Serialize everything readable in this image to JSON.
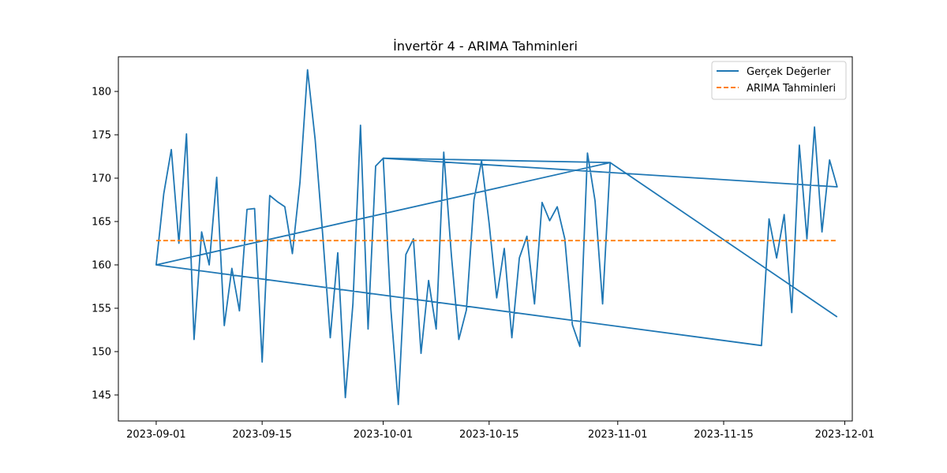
{
  "chart_data": {
    "type": "line",
    "title": "İnvertör 4 - ARIMA Tahminleri",
    "xlabel": "",
    "ylabel": "",
    "x_range": [
      "2023-08-27",
      "2023-12-02"
    ],
    "ylim": [
      142,
      184
    ],
    "grid": false,
    "legend_position": "top-right",
    "x_ticks": [
      "2023-09-01",
      "2023-09-15",
      "2023-10-01",
      "2023-10-15",
      "2023-11-01",
      "2023-11-15",
      "2023-12-01"
    ],
    "y_ticks": [
      145,
      150,
      155,
      160,
      165,
      170,
      175,
      180
    ],
    "series": [
      {
        "name": "Gerçek Değerler",
        "color": "#1f77b4",
        "style": "solid",
        "x": [
          "2023-09-01",
          "2023-09-02",
          "2023-09-03",
          "2023-09-04",
          "2023-09-05",
          "2023-09-06",
          "2023-09-07",
          "2023-09-08",
          "2023-09-09",
          "2023-09-10",
          "2023-09-11",
          "2023-09-12",
          "2023-09-13",
          "2023-09-14",
          "2023-09-15",
          "2023-09-16",
          "2023-09-17",
          "2023-09-18",
          "2023-09-19",
          "2023-09-20",
          "2023-09-21",
          "2023-09-22",
          "2023-09-23",
          "2023-09-24",
          "2023-09-25",
          "2023-09-26",
          "2023-09-27",
          "2023-09-28",
          "2023-09-29",
          "2023-09-30",
          "2023-10-01",
          "2023-10-02",
          "2023-10-03",
          "2023-10-04",
          "2023-10-05",
          "2023-10-06",
          "2023-10-07",
          "2023-10-08",
          "2023-10-09",
          "2023-10-10",
          "2023-10-11",
          "2023-10-12",
          "2023-10-13",
          "2023-10-14",
          "2023-10-15",
          "2023-10-16",
          "2023-10-17",
          "2023-10-18",
          "2023-10-19",
          "2023-10-20",
          "2023-10-21",
          "2023-10-22",
          "2023-10-23",
          "2023-10-24",
          "2023-10-25",
          "2023-10-26",
          "2023-10-27",
          "2023-10-28",
          "2023-10-29",
          "2023-10-30",
          "2023-10-31",
          "2023-09-01",
          "2023-11-20",
          "2023-11-21",
          "2023-11-22",
          "2023-11-23",
          "2023-11-24",
          "2023-11-25",
          "2023-11-26",
          "2023-11-27",
          "2023-11-28",
          "2023-11-29",
          "2023-11-30",
          "2023-10-01",
          "2023-10-31",
          "2023-11-30"
        ],
        "y": [
          160.0,
          168.2,
          173.3,
          162.5,
          175.1,
          151.4,
          163.8,
          160.0,
          170.1,
          153.0,
          159.6,
          154.7,
          166.4,
          166.5,
          148.8,
          168.0,
          167.3,
          166.7,
          161.3,
          169.5,
          182.5,
          174.5,
          163.5,
          151.6,
          161.4,
          144.7,
          155.5,
          176.1,
          152.6,
          171.4,
          172.3,
          155.0,
          143.9,
          161.2,
          163.0,
          149.8,
          158.2,
          152.6,
          173.0,
          161.2,
          151.4,
          154.8,
          167.5,
          172.0,
          164.8,
          156.2,
          161.9,
          151.6,
          160.8,
          163.3,
          155.5,
          167.2,
          165.1,
          166.7,
          163.0,
          153.1,
          150.6,
          172.9,
          167.4,
          155.5,
          171.8,
          160.0,
          150.7,
          165.3,
          160.8,
          165.8,
          154.5,
          173.8,
          163.0,
          175.9,
          163.8,
          172.1,
          169.0,
          172.3,
          171.8,
          154.0
        ]
      },
      {
        "name": "ARIMA Tahminleri",
        "color": "#ff7f0e",
        "style": "dashed",
        "x": [
          "2023-09-01",
          "2023-11-30"
        ],
        "y": [
          162.8,
          162.8
        ]
      }
    ]
  }
}
